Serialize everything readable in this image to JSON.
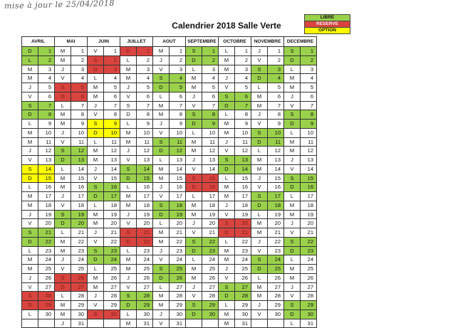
{
  "note": "mise à jour le 25/04/2018",
  "title": "Calendrier 2018 Salle Verte",
  "legend": [
    {
      "label": "LIBRE",
      "status": "g"
    },
    {
      "label": "RESERVE",
      "status": "r"
    },
    {
      "label": "OPTION",
      "status": "y"
    }
  ],
  "colors": {
    "libre": "#9ad14b",
    "reserve": "#d9443f",
    "option": "#ffff00"
  },
  "months": [
    {
      "name": "AVRIL",
      "days": [
        [
          "D",
          "1",
          "g"
        ],
        [
          "L",
          "2",
          "g"
        ],
        [
          "M",
          "3",
          ""
        ],
        [
          "M",
          "4",
          ""
        ],
        [
          "J",
          "5",
          ""
        ],
        [
          "V",
          "6",
          ""
        ],
        [
          "S",
          "7",
          "g"
        ],
        [
          "D",
          "8",
          "g"
        ],
        [
          "L",
          "9",
          ""
        ],
        [
          "M",
          "10",
          ""
        ],
        [
          "M",
          "11",
          ""
        ],
        [
          "J",
          "12",
          ""
        ],
        [
          "V",
          "13",
          ""
        ],
        [
          "S",
          "14",
          "y"
        ],
        [
          "D",
          "15",
          "y"
        ],
        [
          "L",
          "16",
          ""
        ],
        [
          "M",
          "17",
          ""
        ],
        [
          "M",
          "18",
          ""
        ],
        [
          "J",
          "19",
          ""
        ],
        [
          "V",
          "20",
          ""
        ],
        [
          "S",
          "21",
          "g"
        ],
        [
          "D",
          "22",
          "g"
        ],
        [
          "L",
          "23",
          ""
        ],
        [
          "M",
          "24",
          ""
        ],
        [
          "M",
          "25",
          ""
        ],
        [
          "J",
          "26",
          ""
        ],
        [
          "V",
          "27",
          ""
        ],
        [
          "S",
          "28",
          "r"
        ],
        [
          "D",
          "29",
          "r"
        ],
        [
          "L",
          "30",
          ""
        ]
      ]
    },
    {
      "name": "MAI",
      "days": [
        [
          "M",
          "1",
          ""
        ],
        [
          "M",
          "2",
          ""
        ],
        [
          "J",
          "3",
          ""
        ],
        [
          "V",
          "4",
          ""
        ],
        [
          "S",
          "5",
          "r"
        ],
        [
          "D",
          "6",
          "r"
        ],
        [
          "L",
          "7",
          ""
        ],
        [
          "M",
          "8",
          ""
        ],
        [
          "M",
          "9",
          ""
        ],
        [
          "J",
          "10",
          ""
        ],
        [
          "V",
          "11",
          ""
        ],
        [
          "S",
          "12",
          "g"
        ],
        [
          "D",
          "13",
          "g"
        ],
        [
          "L",
          "14",
          ""
        ],
        [
          "M",
          "15",
          ""
        ],
        [
          "M",
          "16",
          ""
        ],
        [
          "J",
          "17",
          ""
        ],
        [
          "V",
          "18",
          ""
        ],
        [
          "S",
          "19",
          "g"
        ],
        [
          "D",
          "20",
          "g"
        ],
        [
          "L",
          "21",
          ""
        ],
        [
          "M",
          "22",
          ""
        ],
        [
          "M",
          "23",
          ""
        ],
        [
          "J",
          "24",
          ""
        ],
        [
          "V",
          "25",
          ""
        ],
        [
          "S",
          "26",
          "r"
        ],
        [
          "D",
          "27",
          "r"
        ],
        [
          "L",
          "28",
          ""
        ],
        [
          "M",
          "29",
          ""
        ],
        [
          "M",
          "30",
          ""
        ],
        [
          "J",
          "31",
          ""
        ]
      ]
    },
    {
      "name": "JUIN",
      "days": [
        [
          "V",
          "1",
          ""
        ],
        [
          "S",
          "2",
          "r"
        ],
        [
          "D",
          "3",
          "r"
        ],
        [
          "L",
          "4",
          ""
        ],
        [
          "M",
          "5",
          ""
        ],
        [
          "M",
          "6",
          ""
        ],
        [
          "J",
          "7",
          ""
        ],
        [
          "V",
          "8",
          ""
        ],
        [
          "S",
          "9",
          "y"
        ],
        [
          "D",
          "10",
          "y"
        ],
        [
          "L",
          "11",
          ""
        ],
        [
          "M",
          "12",
          ""
        ],
        [
          "M",
          "13",
          ""
        ],
        [
          "J",
          "14",
          ""
        ],
        [
          "V",
          "15",
          ""
        ],
        [
          "S",
          "16",
          "g"
        ],
        [
          "D",
          "17",
          "g"
        ],
        [
          "L",
          "18",
          ""
        ],
        [
          "M",
          "19",
          ""
        ],
        [
          "M",
          "20",
          ""
        ],
        [
          "J",
          "21",
          ""
        ],
        [
          "V",
          "22",
          ""
        ],
        [
          "S",
          "23",
          "g"
        ],
        [
          "D",
          "24",
          "g"
        ],
        [
          "L",
          "25",
          ""
        ],
        [
          "M",
          "26",
          ""
        ],
        [
          "M",
          "27",
          ""
        ],
        [
          "J",
          "28",
          ""
        ],
        [
          "V",
          "29",
          ""
        ],
        [
          "S",
          "30",
          "r"
        ]
      ]
    },
    {
      "name": "JUILLET",
      "days": [
        [
          "D",
          "1",
          "r"
        ],
        [
          "L",
          "2",
          ""
        ],
        [
          "M",
          "3",
          ""
        ],
        [
          "M",
          "4",
          ""
        ],
        [
          "J",
          "5",
          ""
        ],
        [
          "V",
          "6",
          ""
        ],
        [
          "S",
          "7",
          ""
        ],
        [
          "D",
          "8",
          ""
        ],
        [
          "L",
          "9",
          ""
        ],
        [
          "M",
          "10",
          ""
        ],
        [
          "M",
          "11",
          ""
        ],
        [
          "J",
          "12",
          ""
        ],
        [
          "V",
          "13",
          ""
        ],
        [
          "S",
          "14",
          "g"
        ],
        [
          "D",
          "15",
          "g"
        ],
        [
          "L",
          "16",
          ""
        ],
        [
          "M",
          "17",
          ""
        ],
        [
          "M",
          "18",
          ""
        ],
        [
          "J",
          "19",
          ""
        ],
        [
          "V",
          "20",
          ""
        ],
        [
          "S",
          "21",
          "r"
        ],
        [
          "D",
          "22",
          "r"
        ],
        [
          "L",
          "23",
          ""
        ],
        [
          "M",
          "24",
          ""
        ],
        [
          "M",
          "25",
          ""
        ],
        [
          "J",
          "26",
          ""
        ],
        [
          "V",
          "27",
          ""
        ],
        [
          "S",
          "28",
          "g"
        ],
        [
          "D",
          "29",
          "g"
        ],
        [
          "L",
          "30",
          ""
        ],
        [
          "M",
          "31",
          ""
        ]
      ]
    },
    {
      "name": "AOUT",
      "days": [
        [
          "M",
          "1",
          ""
        ],
        [
          "J",
          "2",
          ""
        ],
        [
          "V",
          "3",
          ""
        ],
        [
          "S",
          "4",
          "g"
        ],
        [
          "D",
          "5",
          "g"
        ],
        [
          "L",
          "6",
          ""
        ],
        [
          "M",
          "7",
          ""
        ],
        [
          "M",
          "8",
          ""
        ],
        [
          "J",
          "9",
          ""
        ],
        [
          "V",
          "10",
          ""
        ],
        [
          "S",
          "11",
          "g"
        ],
        [
          "D",
          "12",
          "g"
        ],
        [
          "L",
          "13",
          ""
        ],
        [
          "M",
          "14",
          ""
        ],
        [
          "M",
          "15",
          ""
        ],
        [
          "J",
          "16",
          ""
        ],
        [
          "V",
          "17",
          ""
        ],
        [
          "S",
          "18",
          "g"
        ],
        [
          "D",
          "19",
          "g"
        ],
        [
          "L",
          "20",
          ""
        ],
        [
          "M",
          "21",
          ""
        ],
        [
          "M",
          "22",
          ""
        ],
        [
          "J",
          "23",
          ""
        ],
        [
          "V",
          "24",
          ""
        ],
        [
          "S",
          "25",
          "g"
        ],
        [
          "D",
          "26",
          "g"
        ],
        [
          "L",
          "27",
          ""
        ],
        [
          "M",
          "28",
          ""
        ],
        [
          "M",
          "29",
          ""
        ],
        [
          "J",
          "30",
          ""
        ],
        [
          "V",
          "31",
          ""
        ]
      ]
    },
    {
      "name": "SEPTEMBRE",
      "days": [
        [
          "S",
          "1",
          "g"
        ],
        [
          "D",
          "2",
          "g"
        ],
        [
          "L",
          "3",
          ""
        ],
        [
          "M",
          "4",
          ""
        ],
        [
          "M",
          "5",
          ""
        ],
        [
          "J",
          "6",
          ""
        ],
        [
          "V",
          "7",
          ""
        ],
        [
          "S",
          "8",
          "g"
        ],
        [
          "D",
          "9",
          "g"
        ],
        [
          "L",
          "10",
          ""
        ],
        [
          "M",
          "11",
          ""
        ],
        [
          "M",
          "12",
          ""
        ],
        [
          "J",
          "13",
          ""
        ],
        [
          "V",
          "14",
          ""
        ],
        [
          "S",
          "15",
          "r"
        ],
        [
          "D",
          "16",
          "r"
        ],
        [
          "L",
          "17",
          ""
        ],
        [
          "M",
          "18",
          ""
        ],
        [
          "M",
          "19",
          ""
        ],
        [
          "J",
          "20",
          ""
        ],
        [
          "V",
          "21",
          ""
        ],
        [
          "S",
          "22",
          "g"
        ],
        [
          "D",
          "23",
          "g"
        ],
        [
          "L",
          "24",
          ""
        ],
        [
          "M",
          "25",
          ""
        ],
        [
          "M",
          "26",
          ""
        ],
        [
          "J",
          "27",
          ""
        ],
        [
          "V",
          "28",
          ""
        ],
        [
          "S",
          "29",
          "g"
        ],
        [
          "D",
          "30",
          "g"
        ]
      ]
    },
    {
      "name": "OCTOBRE",
      "days": [
        [
          "L",
          "1",
          ""
        ],
        [
          "M",
          "2",
          ""
        ],
        [
          "M",
          "3",
          ""
        ],
        [
          "J",
          "4",
          ""
        ],
        [
          "V",
          "5",
          ""
        ],
        [
          "S",
          "6",
          "g"
        ],
        [
          "D",
          "7",
          "g"
        ],
        [
          "L",
          "8",
          ""
        ],
        [
          "M",
          "9",
          ""
        ],
        [
          "M",
          "10",
          ""
        ],
        [
          "J",
          "11",
          ""
        ],
        [
          "V",
          "12",
          ""
        ],
        [
          "S",
          "13",
          "g"
        ],
        [
          "D",
          "14",
          "g"
        ],
        [
          "L",
          "15",
          ""
        ],
        [
          "M",
          "16",
          ""
        ],
        [
          "M",
          "17",
          ""
        ],
        [
          "J",
          "18",
          ""
        ],
        [
          "V",
          "19",
          ""
        ],
        [
          "S",
          "20",
          "r"
        ],
        [
          "D",
          "21",
          "r"
        ],
        [
          "L",
          "22",
          ""
        ],
        [
          "M",
          "23",
          ""
        ],
        [
          "M",
          "24",
          ""
        ],
        [
          "J",
          "25",
          ""
        ],
        [
          "V",
          "26",
          ""
        ],
        [
          "S",
          "27",
          "g"
        ],
        [
          "D",
          "28",
          "g"
        ],
        [
          "L",
          "29",
          ""
        ],
        [
          "M",
          "30",
          ""
        ],
        [
          "M",
          "31",
          ""
        ]
      ]
    },
    {
      "name": "NOVEMBRE",
      "days": [
        [
          "J",
          "1",
          ""
        ],
        [
          "V",
          "2",
          ""
        ],
        [
          "S",
          "3",
          "g"
        ],
        [
          "D",
          "4",
          "g"
        ],
        [
          "L",
          "5",
          ""
        ],
        [
          "M",
          "6",
          ""
        ],
        [
          "M",
          "7",
          ""
        ],
        [
          "J",
          "8",
          ""
        ],
        [
          "V",
          "9",
          ""
        ],
        [
          "S",
          "10",
          "g"
        ],
        [
          "D",
          "11",
          "g"
        ],
        [
          "L",
          "12",
          ""
        ],
        [
          "M",
          "13",
          ""
        ],
        [
          "M",
          "14",
          ""
        ],
        [
          "J",
          "15",
          ""
        ],
        [
          "V",
          "16",
          ""
        ],
        [
          "S",
          "17",
          "g"
        ],
        [
          "D",
          "18",
          "g"
        ],
        [
          "L",
          "19",
          ""
        ],
        [
          "M",
          "20",
          ""
        ],
        [
          "M",
          "21",
          ""
        ],
        [
          "J",
          "22",
          ""
        ],
        [
          "V",
          "23",
          ""
        ],
        [
          "S",
          "24",
          "g"
        ],
        [
          "D",
          "25",
          "g"
        ],
        [
          "L",
          "26",
          ""
        ],
        [
          "M",
          "27",
          ""
        ],
        [
          "M",
          "28",
          ""
        ],
        [
          "J",
          "29",
          ""
        ],
        [
          "V",
          "30",
          ""
        ]
      ]
    },
    {
      "name": "DECEMBRE",
      "days": [
        [
          "S",
          "1",
          "g"
        ],
        [
          "D",
          "2",
          "g"
        ],
        [
          "L",
          "3",
          ""
        ],
        [
          "M",
          "4",
          ""
        ],
        [
          "M",
          "5",
          ""
        ],
        [
          "J",
          "6",
          ""
        ],
        [
          "V",
          "7",
          ""
        ],
        [
          "S",
          "8",
          "g"
        ],
        [
          "D",
          "9",
          "g"
        ],
        [
          "L",
          "10",
          ""
        ],
        [
          "M",
          "11",
          ""
        ],
        [
          "M",
          "12",
          ""
        ],
        [
          "J",
          "13",
          ""
        ],
        [
          "V",
          "14",
          ""
        ],
        [
          "S",
          "15",
          "g"
        ],
        [
          "D",
          "16",
          "g"
        ],
        [
          "L",
          "17",
          ""
        ],
        [
          "M",
          "18",
          ""
        ],
        [
          "M",
          "19",
          ""
        ],
        [
          "J",
          "20",
          ""
        ],
        [
          "V",
          "21",
          ""
        ],
        [
          "S",
          "22",
          "g"
        ],
        [
          "D",
          "23",
          "g"
        ],
        [
          "L",
          "24",
          ""
        ],
        [
          "M",
          "25",
          ""
        ],
        [
          "M",
          "26",
          ""
        ],
        [
          "J",
          "27",
          ""
        ],
        [
          "V",
          "28",
          ""
        ],
        [
          "S",
          "29",
          "g"
        ],
        [
          "D",
          "30",
          "g"
        ],
        [
          "L",
          "31",
          ""
        ]
      ]
    }
  ]
}
